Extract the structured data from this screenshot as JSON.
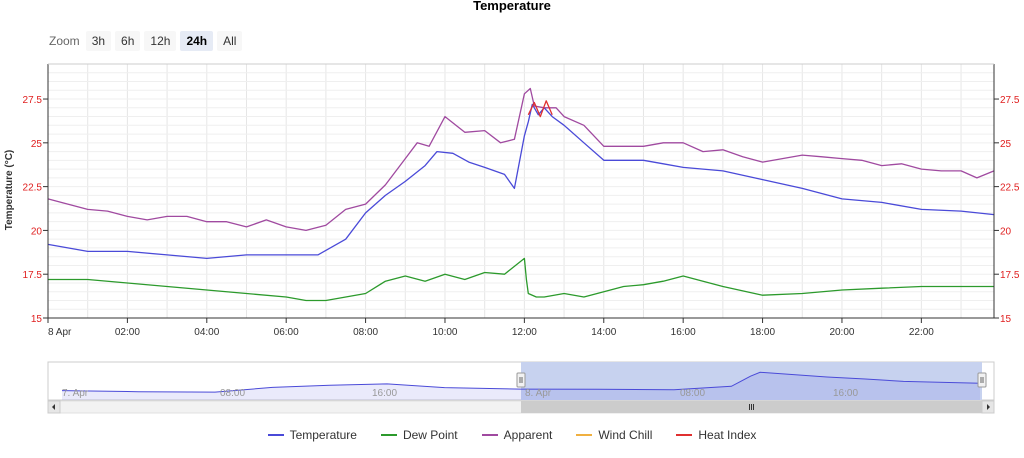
{
  "chart_data": {
    "type": "line",
    "title": "Temperature",
    "ylabel": "Temperature (°C)",
    "ylim": [
      15,
      29.5
    ],
    "x_range_hours": [
      0,
      23.83
    ],
    "x_start_label": "8 Apr",
    "x_tick_labels": [
      "8 Apr",
      "02:00",
      "04:00",
      "06:00",
      "08:00",
      "10:00",
      "12:00",
      "14:00",
      "16:00",
      "18:00",
      "20:00",
      "22:00"
    ],
    "x_tick_hours": [
      0,
      2,
      4,
      6,
      8,
      10,
      12,
      14,
      16,
      18,
      20,
      22
    ],
    "y_ticks": [
      15,
      17.5,
      20,
      22.5,
      25,
      27.5
    ],
    "y_tick_labels": [
      "15",
      "17.5",
      "20",
      "22.5",
      "25",
      "27.5"
    ],
    "grid": true,
    "legend_position": "bottom-center",
    "series": [
      {
        "name": "Temperature",
        "color": "#4a4ad8",
        "hours": [
          0,
          1,
          2,
          3,
          4,
          5,
          6,
          6.8,
          7.5,
          8,
          8.5,
          9,
          9.5,
          9.8,
          10.2,
          10.6,
          11,
          11.5,
          11.75,
          12,
          12.1,
          12.2,
          12.35,
          12.5,
          12.7,
          13,
          13.5,
          14,
          14.5,
          15,
          15.5,
          16,
          17,
          18,
          19,
          20,
          21,
          22,
          23,
          23.83
        ],
        "values": [
          19.2,
          18.8,
          18.8,
          18.6,
          18.4,
          18.6,
          18.6,
          18.6,
          19.5,
          21,
          22,
          22.8,
          23.7,
          24.5,
          24.4,
          23.9,
          23.6,
          23.2,
          22.4,
          25.4,
          26.2,
          27.2,
          26.6,
          27,
          26.5,
          26,
          25,
          24,
          24,
          24,
          23.8,
          23.6,
          23.4,
          22.9,
          22.4,
          21.8,
          21.6,
          21.2,
          21.1,
          20.9
        ]
      },
      {
        "name": "Dew Point",
        "color": "#2c9a2c",
        "hours": [
          0,
          1,
          2,
          3,
          4,
          5,
          6,
          6.5,
          7,
          8,
          8.5,
          9,
          9.5,
          10,
          10.5,
          11,
          11.5,
          12,
          12.05,
          12.1,
          12.3,
          12.5,
          13,
          13.5,
          14,
          14.5,
          15,
          15.5,
          16,
          16.5,
          17,
          18,
          19,
          20,
          21,
          22,
          23,
          23.83
        ],
        "values": [
          17.2,
          17.2,
          17,
          16.8,
          16.6,
          16.4,
          16.2,
          16,
          16,
          16.4,
          17.1,
          17.4,
          17.1,
          17.5,
          17.2,
          17.6,
          17.5,
          18.4,
          17.2,
          16.4,
          16.2,
          16.2,
          16.4,
          16.2,
          16.5,
          16.8,
          16.9,
          17.1,
          17.4,
          17.1,
          16.8,
          16.3,
          16.4,
          16.6,
          16.7,
          16.8,
          16.8,
          16.8
        ]
      },
      {
        "name": "Apparent",
        "color": "#a04aa0",
        "hours": [
          0,
          0.5,
          1,
          1.5,
          2,
          2.5,
          3,
          3.5,
          4,
          4.5,
          5,
          5.5,
          6,
          6.5,
          7,
          7.5,
          8,
          8.5,
          9,
          9.3,
          9.6,
          10,
          10.5,
          11,
          11.4,
          11.75,
          12,
          12.15,
          12.25,
          12.5,
          12.8,
          13,
          13.5,
          14,
          14.5,
          15,
          15.5,
          16,
          16.5,
          17,
          17.5,
          18,
          18.5,
          19,
          19.5,
          20,
          20.5,
          21,
          21.5,
          22,
          22.5,
          23,
          23.4,
          23.83
        ],
        "values": [
          21.8,
          21.5,
          21.2,
          21.1,
          20.8,
          20.6,
          20.8,
          20.8,
          20.5,
          20.5,
          20.2,
          20.6,
          20.2,
          20,
          20.3,
          21.2,
          21.5,
          22.6,
          24.1,
          25,
          24.8,
          26.5,
          25.6,
          25.7,
          25,
          25.2,
          27.8,
          28.1,
          27.1,
          27,
          27,
          26.5,
          26,
          24.8,
          24.8,
          24.8,
          25,
          25,
          24.5,
          24.6,
          24.2,
          23.9,
          24.1,
          24.3,
          24.2,
          24.1,
          24,
          23.7,
          23.8,
          23.5,
          23.4,
          23.4,
          23,
          23.4
        ]
      },
      {
        "name": "Wind Chill",
        "color": "#f0b040",
        "hours": [],
        "values": []
      },
      {
        "name": "Heat Index",
        "color": "#e03030",
        "hours": [
          12.1,
          12.25,
          12.4,
          12.55,
          12.7
        ],
        "values": [
          26.6,
          27.3,
          26.5,
          27.4,
          26.6
        ]
      }
    ],
    "navigator": {
      "tick_labels": [
        "7. Apr",
        "08:00",
        "16:00",
        "8. Apr",
        "08:00",
        "16:00"
      ]
    }
  }
}
